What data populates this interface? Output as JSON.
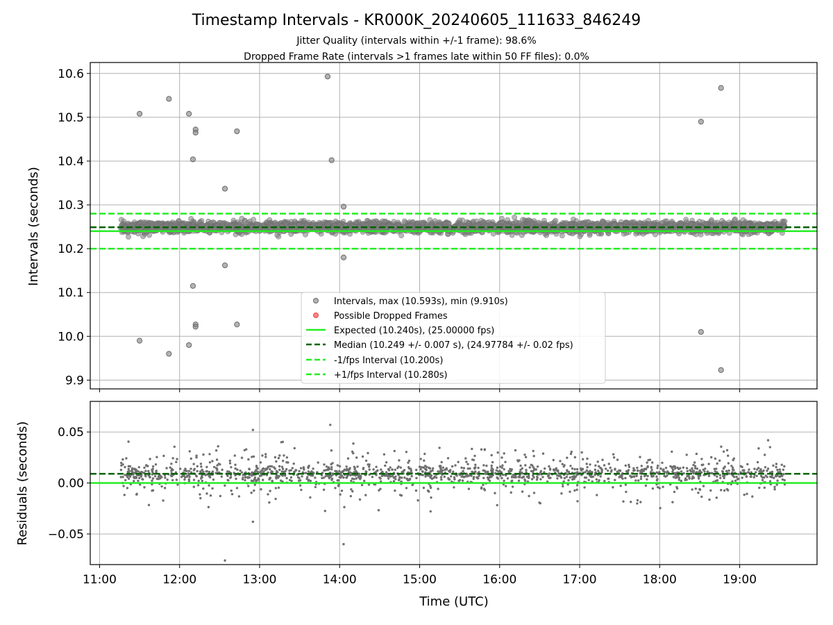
{
  "chart_data": [
    {
      "type": "scatter",
      "title": "Timestamp Intervals - KR000K_20240605_111633_846249",
      "subtitle_lines": [
        "Jitter Quality (intervals within +/-1 frame): 98.6%",
        "Dropped Frame Rate (intervals >1 frames late within 50 FF files): 0.0%"
      ],
      "xlabel": "",
      "ylabel": "Intervals (seconds)",
      "xlim": [
        "10:53",
        "19:58"
      ],
      "ylim": [
        9.88,
        10.625
      ],
      "y_ticks": [
        9.9,
        10.0,
        10.1,
        10.2,
        10.3,
        10.4,
        10.5,
        10.6
      ],
      "y_tick_labels": [
        "9.9",
        "10.0",
        "10.1",
        "10.2",
        "10.3",
        "10.4",
        "10.5",
        "10.6"
      ],
      "grid": true,
      "legend_position": "lower-center",
      "legend": [
        "Intervals, max (10.593s), min (9.910s)",
        "Possible Dropped Frames",
        "Expected (10.240s), (25.00000 fps)",
        "Median (10.249 +/- 0.007 s), (24.97784 +/- 0.02 fps)",
        "-1/fps Interval (10.200s)",
        "+1/fps Interval (10.280s)"
      ],
      "series": [
        {
          "name": "Intervals, max (10.593s), min (9.910s)",
          "color": "#808080",
          "time_range": [
            "11:16",
            "19:34"
          ],
          "median": 10.249,
          "std": 0.007,
          "min": 9.91,
          "max": 10.593,
          "count": 2900,
          "outliers": [
            {
              "x": "11:30",
              "y": 10.508
            },
            {
              "x": "11:30",
              "y": 9.99
            },
            {
              "x": "11:52",
              "y": 10.542
            },
            {
              "x": "11:52",
              "y": 9.96
            },
            {
              "x": "12:07",
              "y": 10.508
            },
            {
              "x": "12:07",
              "y": 9.98
            },
            {
              "x": "12:10",
              "y": 10.404
            },
            {
              "x": "12:10",
              "y": 10.115
            },
            {
              "x": "12:12",
              "y": 10.472
            },
            {
              "x": "12:12",
              "y": 10.465
            },
            {
              "x": "12:12",
              "y": 10.027
            },
            {
              "x": "12:12",
              "y": 10.022
            },
            {
              "x": "12:34",
              "y": 10.337
            },
            {
              "x": "12:34",
              "y": 10.162
            },
            {
              "x": "12:43",
              "y": 10.468
            },
            {
              "x": "12:43",
              "y": 10.027
            },
            {
              "x": "13:51",
              "y": 10.593
            },
            {
              "x": "13:54",
              "y": 10.402
            },
            {
              "x": "14:03",
              "y": 10.296
            },
            {
              "x": "14:03",
              "y": 10.18
            },
            {
              "x": "18:31",
              "y": 10.49
            },
            {
              "x": "18:31",
              "y": 10.01
            },
            {
              "x": "18:46",
              "y": 10.567
            },
            {
              "x": "18:46",
              "y": 9.923
            }
          ]
        },
        {
          "name": "Possible Dropped Frames",
          "color": "#ff0000",
          "points": []
        },
        {
          "name": "Expected (10.240s), (25.00000 fps)",
          "color": "#22ee22",
          "style": "solid",
          "y": 10.24
        },
        {
          "name": "Median (10.249 +/- 0.007 s), (24.97784 +/- 0.02 fps)",
          "color": "#006400",
          "style": "dashed",
          "y": 10.249
        },
        {
          "name": "-1/fps Interval (10.200s)",
          "color": "#22ee22",
          "style": "dashed",
          "y": 10.2
        },
        {
          "name": "+1/fps Interval (10.280s)",
          "color": "#22ee22",
          "style": "dashed",
          "y": 10.28
        }
      ]
    },
    {
      "type": "scatter",
      "xlabel": "Time (UTC)",
      "ylabel": "Residuals (seconds)",
      "xlim": [
        "10:53",
        "19:58"
      ],
      "x_ticks": [
        "11:00",
        "12:00",
        "13:00",
        "14:00",
        "15:00",
        "16:00",
        "17:00",
        "18:00",
        "19:00"
      ],
      "ylim": [
        -0.08,
        0.08
      ],
      "y_ticks": [
        -0.05,
        0.0,
        0.05
      ],
      "y_tick_labels": [
        "−0.05",
        "0.00",
        "0.05"
      ],
      "grid": true,
      "series": [
        {
          "name": "Residuals",
          "color": "#707070",
          "time_range": [
            "11:16",
            "19:34"
          ],
          "center": 0.009,
          "std": 0.012,
          "count": 1600,
          "outliers": [
            {
              "x": "12:34",
              "y": -0.076
            },
            {
              "x": "13:53",
              "y": 0.057
            },
            {
              "x": "14:03",
              "y": -0.06
            },
            {
              "x": "12:55",
              "y": -0.038
            },
            {
              "x": "12:55",
              "y": 0.052
            }
          ]
        },
        {
          "name": "Expected",
          "color": "#22ee22",
          "style": "solid",
          "y": 0.0
        },
        {
          "name": "Median",
          "color": "#006400",
          "style": "dashed",
          "y": 0.009
        }
      ]
    }
  ]
}
